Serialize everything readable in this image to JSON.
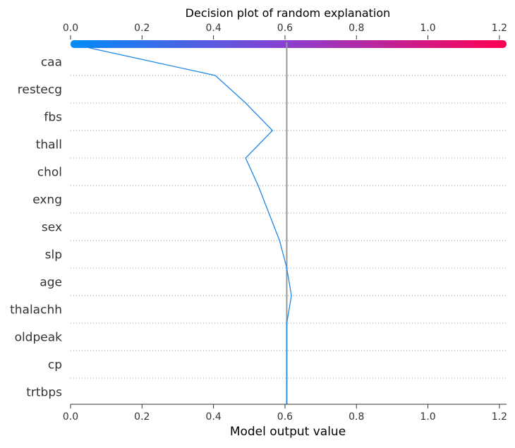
{
  "chart_data": {
    "type": "line",
    "title": "Decision plot of random explanation",
    "xlabel": "Model output value",
    "ylabel": "",
    "xlim": [
      0.0,
      1.22
    ],
    "x_ticks": [
      0.0,
      0.2,
      0.4,
      0.6,
      0.8,
      1.0,
      1.2
    ],
    "x_tick_labels": [
      "0.0",
      "0.2",
      "0.4",
      "0.6",
      "0.8",
      "1.0",
      "1.2"
    ],
    "base_value": 0.605,
    "features": [
      "caa",
      "restecg",
      "fbs",
      "thall",
      "chol",
      "exng",
      "sex",
      "slp",
      "age",
      "thalachh",
      "oldpeak",
      "cp",
      "trtbps"
    ],
    "series": [
      {
        "name": "random explanation",
        "color": "#1E88E5",
        "path_x": [
          0.0,
          0.405,
          0.49,
          0.565,
          0.49,
          0.525,
          0.555,
          0.585,
          0.605,
          0.618,
          0.605,
          0.605,
          0.605,
          0.605
        ],
        "path_y_labels": [
          "top",
          "caa",
          "restecg",
          "fbs",
          "thall",
          "chol",
          "exng",
          "sex",
          "slp",
          "age",
          "thalachh",
          "oldpeak",
          "cp",
          "trtbps"
        ]
      }
    ],
    "colorbar": {
      "from_color": "#008BFB",
      "mid_color": "#8B3FD0",
      "to_color": "#FF0052"
    },
    "base_line_color": "#999999",
    "grid": "dotted horizontal"
  }
}
